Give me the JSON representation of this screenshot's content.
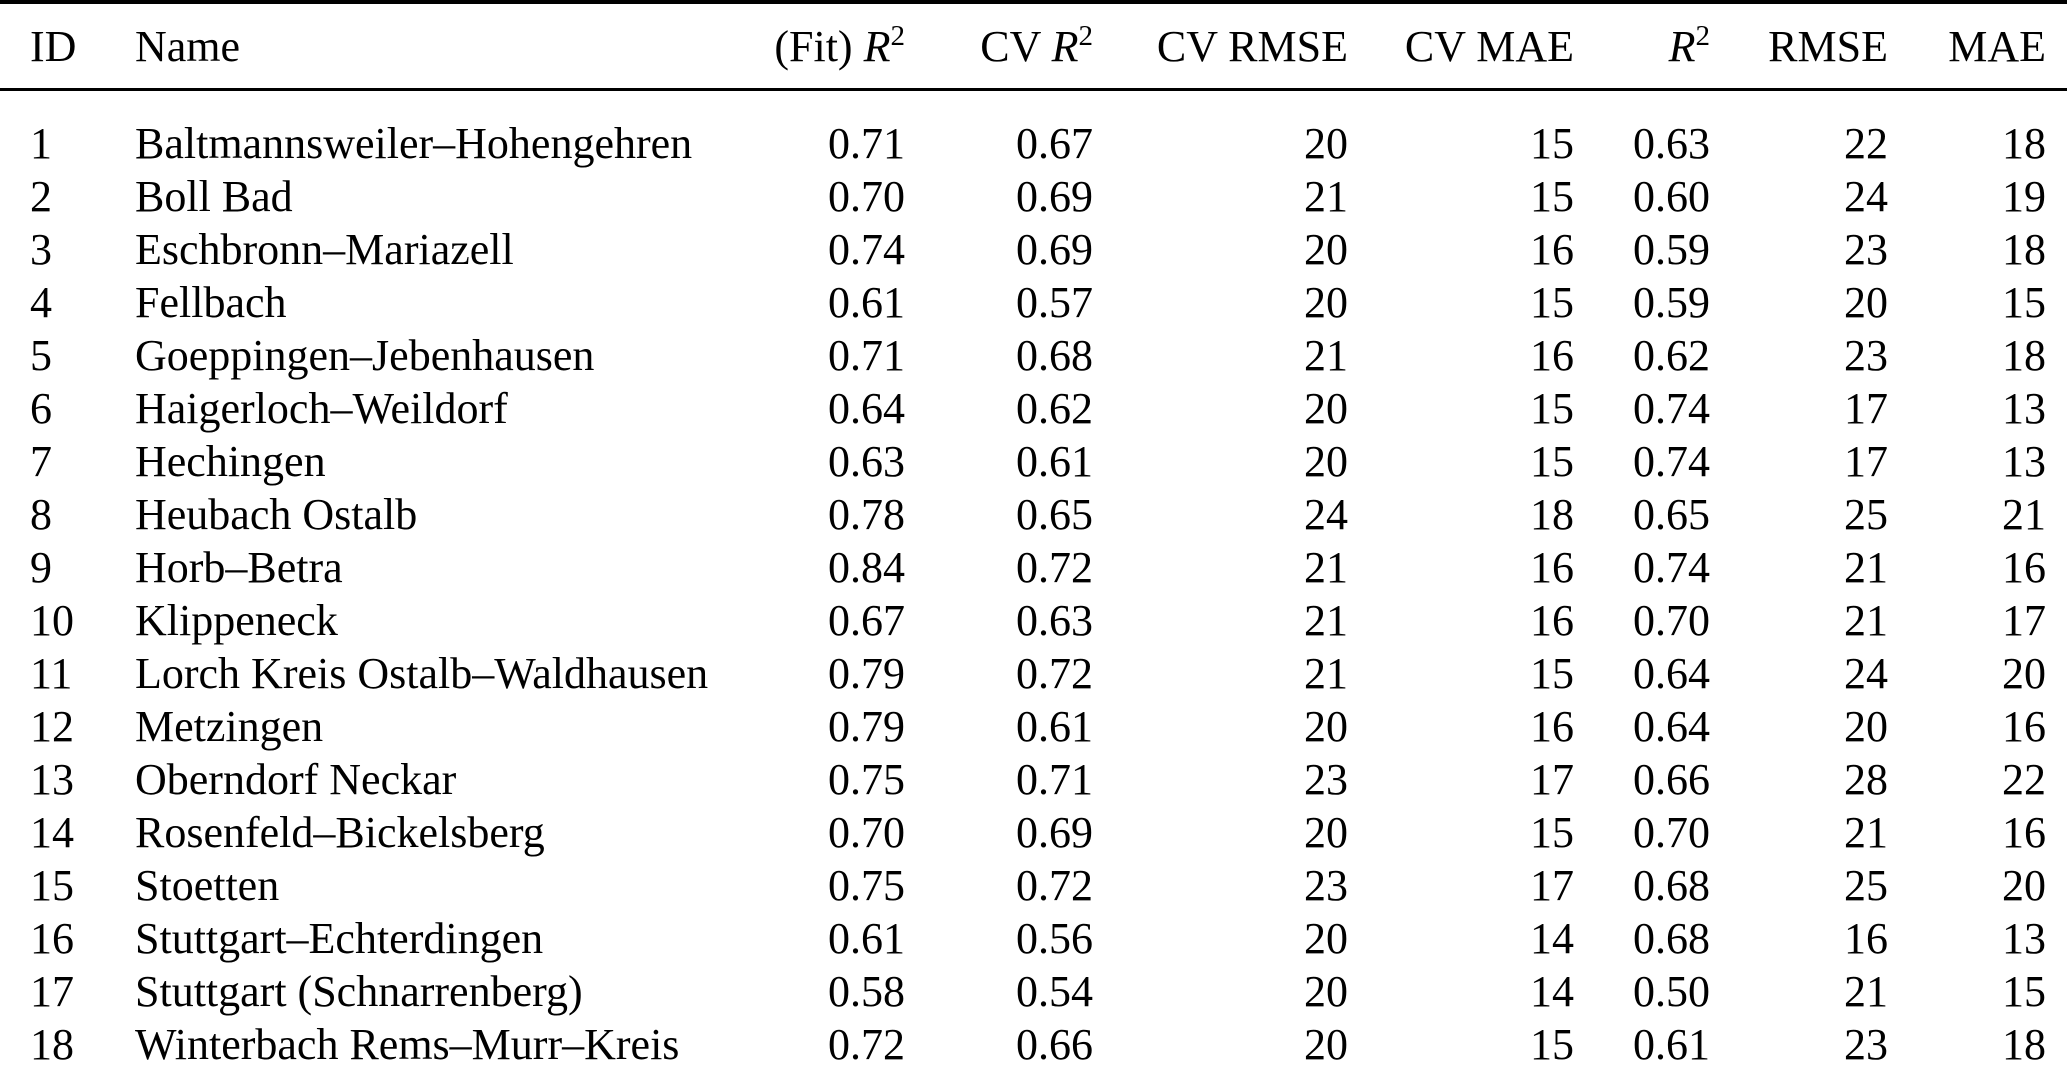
{
  "table": {
    "columns": [
      {
        "key": "id",
        "label": "ID",
        "align": "left"
      },
      {
        "key": "name",
        "label": "Name",
        "align": "left"
      },
      {
        "key": "fit-r2",
        "label": "(Fit) R²",
        "align": "right"
      },
      {
        "key": "cv-r2",
        "label": "CV R²",
        "align": "right"
      },
      {
        "key": "cv-rmse",
        "label": "CV RMSE",
        "align": "right"
      },
      {
        "key": "cv-mae",
        "label": "CV MAE",
        "align": "right"
      },
      {
        "key": "r2",
        "label": "R²",
        "align": "right"
      },
      {
        "key": "rmse",
        "label": "RMSE",
        "align": "right"
      },
      {
        "key": "mae",
        "label": "MAE",
        "align": "right"
      }
    ],
    "rows": [
      [
        "1",
        "Baltmannsweiler–Hohengehren",
        "0.71",
        "0.67",
        "20",
        "15",
        "0.63",
        "22",
        "18"
      ],
      [
        "2",
        "Boll Bad",
        "0.70",
        "0.69",
        "21",
        "15",
        "0.60",
        "24",
        "19"
      ],
      [
        "3",
        "Eschbronn–Mariazell",
        "0.74",
        "0.69",
        "20",
        "16",
        "0.59",
        "23",
        "18"
      ],
      [
        "4",
        "Fellbach",
        "0.61",
        "0.57",
        "20",
        "15",
        "0.59",
        "20",
        "15"
      ],
      [
        "5",
        "Goeppingen–Jebenhausen",
        "0.71",
        "0.68",
        "21",
        "16",
        "0.62",
        "23",
        "18"
      ],
      [
        "6",
        "Haigerloch–Weildorf",
        "0.64",
        "0.62",
        "20",
        "15",
        "0.74",
        "17",
        "13"
      ],
      [
        "7",
        "Hechingen",
        "0.63",
        "0.61",
        "20",
        "15",
        "0.74",
        "17",
        "13"
      ],
      [
        "8",
        "Heubach Ostalb",
        "0.78",
        "0.65",
        "24",
        "18",
        "0.65",
        "25",
        "21"
      ],
      [
        "9",
        "Horb–Betra",
        "0.84",
        "0.72",
        "21",
        "16",
        "0.74",
        "21",
        "16"
      ],
      [
        "10",
        "Klippeneck",
        "0.67",
        "0.63",
        "21",
        "16",
        "0.70",
        "21",
        "17"
      ],
      [
        "11",
        "Lorch Kreis Ostalb–Waldhausen",
        "0.79",
        "0.72",
        "21",
        "15",
        "0.64",
        "24",
        "20"
      ],
      [
        "12",
        "Metzingen",
        "0.79",
        "0.61",
        "20",
        "16",
        "0.64",
        "20",
        "16"
      ],
      [
        "13",
        "Oberndorf Neckar",
        "0.75",
        "0.71",
        "23",
        "17",
        "0.66",
        "28",
        "22"
      ],
      [
        "14",
        "Rosenfeld–Bickelsberg",
        "0.70",
        "0.69",
        "20",
        "15",
        "0.70",
        "21",
        "16"
      ],
      [
        "15",
        "Stoetten",
        "0.75",
        "0.72",
        "23",
        "17",
        "0.68",
        "25",
        "20"
      ],
      [
        "16",
        "Stuttgart–Echterdingen",
        "0.61",
        "0.56",
        "20",
        "14",
        "0.68",
        "16",
        "13"
      ],
      [
        "17",
        "Stuttgart (Schnarrenberg)",
        "0.58",
        "0.54",
        "20",
        "14",
        "0.50",
        "21",
        "15"
      ],
      [
        "18",
        "Winterbach Rems–Murr–Kreis",
        "0.72",
        "0.66",
        "20",
        "15",
        "0.61",
        "23",
        "18"
      ]
    ]
  },
  "colors": {
    "text": "#000000",
    "background": "#ffffff",
    "rule": "#000000"
  }
}
